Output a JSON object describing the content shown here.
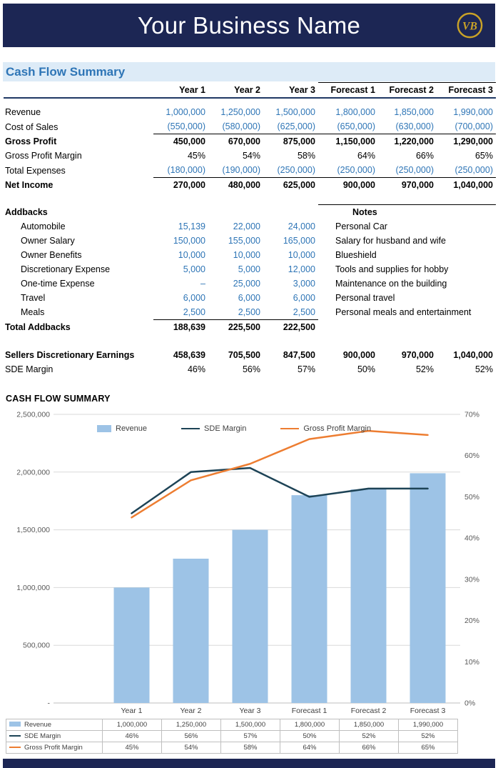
{
  "header": {
    "title": "Your Business Name",
    "logo_text": "VB"
  },
  "section": {
    "title": "Cash Flow Summary"
  },
  "table": {
    "col_headers": [
      "Year 1",
      "Year 2",
      "Year 3",
      "Forecast 1",
      "Forecast 2",
      "Forecast 3"
    ],
    "rows": {
      "revenue": {
        "label": "Revenue",
        "values": [
          "1,000,000",
          "1,250,000",
          "1,500,000",
          "1,800,000",
          "1,850,000",
          "1,990,000"
        ]
      },
      "cost_of_sales": {
        "label": "Cost of Sales",
        "values": [
          "(550,000)",
          "(580,000)",
          "(625,000)",
          "(650,000)",
          "(630,000)",
          "(700,000)"
        ]
      },
      "gross_profit": {
        "label": "Gross Profit",
        "values": [
          "450,000",
          "670,000",
          "875,000",
          "1,150,000",
          "1,220,000",
          "1,290,000"
        ]
      },
      "gross_profit_margin": {
        "label": "Gross Profit Margin",
        "values": [
          "45%",
          "54%",
          "58%",
          "64%",
          "66%",
          "65%"
        ]
      },
      "total_expenses": {
        "label": "Total Expenses",
        "values": [
          "(180,000)",
          "(190,000)",
          "(250,000)",
          "(250,000)",
          "(250,000)",
          "(250,000)"
        ]
      },
      "net_income": {
        "label": "Net Income",
        "values": [
          "270,000",
          "480,000",
          "625,000",
          "900,000",
          "970,000",
          "1,040,000"
        ]
      }
    },
    "addbacks": {
      "heading": "Addbacks",
      "notes_heading": "Notes",
      "items": [
        {
          "label": "Automobile",
          "values": [
            "15,139",
            "22,000",
            "24,000"
          ],
          "note": "Personal Car"
        },
        {
          "label": "Owner Salary",
          "values": [
            "150,000",
            "155,000",
            "165,000"
          ],
          "note": "Salary for husband and wife"
        },
        {
          "label": "Owner Benefits",
          "values": [
            "10,000",
            "10,000",
            "10,000"
          ],
          "note": "Blueshield"
        },
        {
          "label": "Discretionary Expense",
          "values": [
            "5,000",
            "5,000",
            "12,000"
          ],
          "note": "Tools and supplies for hobby"
        },
        {
          "label": "One-time Expense",
          "values": [
            "–",
            "25,000",
            "3,000"
          ],
          "note": "Maintenance on the building"
        },
        {
          "label": "Travel",
          "values": [
            "6,000",
            "6,000",
            "6,000"
          ],
          "note": "Personal travel"
        },
        {
          "label": "Meals",
          "values": [
            "2,500",
            "2,500",
            "2,500"
          ],
          "note": "Personal meals and entertainment"
        }
      ],
      "total": {
        "label": "Total Addbacks",
        "values": [
          "188,639",
          "225,500",
          "222,500"
        ]
      }
    },
    "sde": {
      "label": "Sellers Discretionary Earnings",
      "values": [
        "458,639",
        "705,500",
        "847,500",
        "900,000",
        "970,000",
        "1,040,000"
      ]
    },
    "sde_margin": {
      "label": "SDE Margin",
      "values": [
        "46%",
        "56%",
        "57%",
        "50%",
        "52%",
        "52%"
      ]
    }
  },
  "chart": {
    "title": "CASH FLOW SUMMARY"
  },
  "chart_data": {
    "type": "combo",
    "categories": [
      "Year 1",
      "Year 2",
      "Year 3",
      "Forecast 1",
      "Forecast 2",
      "Forecast 3"
    ],
    "series": [
      {
        "name": "Revenue",
        "type": "bar",
        "axis": "left",
        "values": [
          1000000,
          1250000,
          1500000,
          1800000,
          1850000,
          1990000
        ],
        "color": "#9DC3E6"
      },
      {
        "name": "SDE Margin",
        "type": "line",
        "axis": "right",
        "values": [
          46,
          56,
          57,
          50,
          52,
          52
        ],
        "color": "#1D4356"
      },
      {
        "name": "Gross Profit Margin",
        "type": "line",
        "axis": "right",
        "values": [
          45,
          54,
          58,
          64,
          66,
          65
        ],
        "color": "#ED7D31"
      }
    ],
    "left_axis": {
      "min": 0,
      "max": 2500000,
      "step": 500000,
      "tick_labels": [
        "-",
        "500,000",
        "1,000,000",
        "1,500,000",
        "2,000,000",
        "2,500,000"
      ]
    },
    "right_axis": {
      "min": 0,
      "max": 70,
      "step": 10,
      "tick_labels": [
        "0%",
        "10%",
        "20%",
        "30%",
        "40%",
        "50%",
        "60%",
        "70%"
      ]
    },
    "legend": [
      "Revenue",
      "SDE Margin",
      "Gross Profit Margin"
    ],
    "legend_position": "top",
    "grid": true,
    "data_table": [
      {
        "name": "Revenue",
        "values": [
          "1,000,000",
          "1,250,000",
          "1,500,000",
          "1,800,000",
          "1,850,000",
          "1,990,000"
        ]
      },
      {
        "name": "SDE Margin",
        "values": [
          "46%",
          "56%",
          "57%",
          "50%",
          "52%",
          "52%"
        ]
      },
      {
        "name": "Gross Profit Margin",
        "values": [
          "45%",
          "54%",
          "58%",
          "64%",
          "66%",
          "65%"
        ]
      }
    ]
  },
  "colors": {
    "navy": "#1C2654",
    "accent_blue": "#2E75B6",
    "band_blue": "#DDEBF7",
    "bar_fill": "#9DC3E6",
    "sde_line": "#1D4356",
    "gpm_line": "#ED7D31",
    "gold": "#C9A227"
  }
}
